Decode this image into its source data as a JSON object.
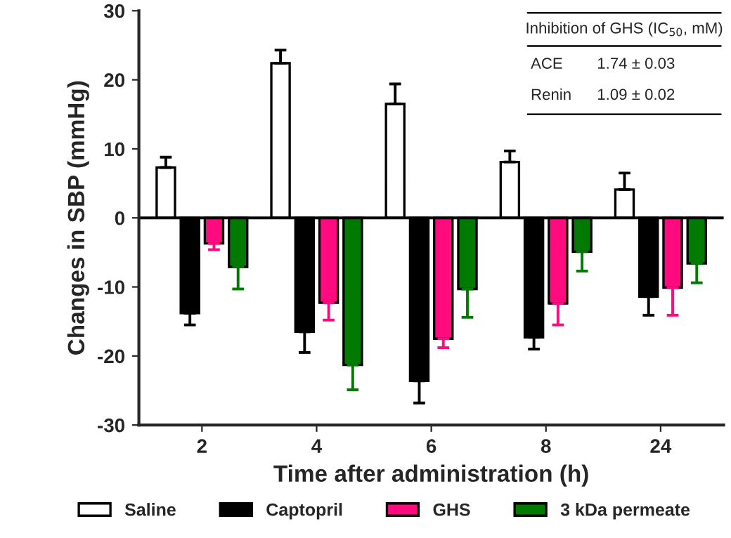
{
  "chart_data": {
    "type": "bar",
    "xlabel": "Time after administration (h)",
    "ylabel": "Changes in SBP (mmHg)",
    "categories": [
      "2",
      "4",
      "6",
      "8",
      "24"
    ],
    "series": [
      {
        "name": "Saline",
        "color": "#ffffff",
        "values": [
          7.3,
          22.4,
          16.5,
          8.1,
          4.1
        ],
        "errors": [
          [
            7.3,
            8.8
          ],
          [
            22.4,
            24.3
          ],
          [
            16.5,
            19.4
          ],
          [
            8.1,
            9.7
          ],
          [
            4.1,
            6.5
          ]
        ]
      },
      {
        "name": "Captopril",
        "color": "#000000",
        "values": [
          -13.8,
          -16.5,
          -23.6,
          -17.3,
          -11.4
        ],
        "errors": [
          [
            -15.5,
            -13.8
          ],
          [
            -19.5,
            -16.5
          ],
          [
            -26.8,
            -23.6
          ],
          [
            -19.0,
            -17.3
          ],
          [
            -14.1,
            -11.4
          ]
        ]
      },
      {
        "name": "GHS",
        "color": "#ff0a7f",
        "values": [
          -3.7,
          -12.3,
          -17.5,
          -12.4,
          -10.1
        ],
        "errors": [
          [
            -4.6,
            -3.7
          ],
          [
            -14.8,
            -12.3
          ],
          [
            -18.8,
            -17.5
          ],
          [
            -15.5,
            -12.4
          ],
          [
            -14.1,
            -10.1
          ]
        ]
      },
      {
        "name": "3 kDa permeate",
        "color": "#007a00",
        "values": [
          -7.1,
          -21.3,
          -10.3,
          -4.9,
          -6.6
        ],
        "errors": [
          [
            -10.3,
            -7.1
          ],
          [
            -24.9,
            -21.3
          ],
          [
            -14.4,
            -10.3
          ],
          [
            -7.7,
            -4.9
          ],
          [
            -9.4,
            -6.6
          ]
        ]
      }
    ],
    "ylim": [
      -30,
      30
    ],
    "yticks": [
      -30,
      -20,
      -10,
      0,
      10,
      20,
      30
    ],
    "ref_lines": [
      {
        "axis": "y",
        "value": 0,
        "color": "#000000"
      }
    ],
    "annotations": [
      "Inhibition of GHS (IC$_{50}$, mM)",
      "ACE",
      "1.74 ± 0.03",
      "Renin",
      "1.09 ± 0.02"
    ],
    "grid": false,
    "legend": "bottom"
  }
}
